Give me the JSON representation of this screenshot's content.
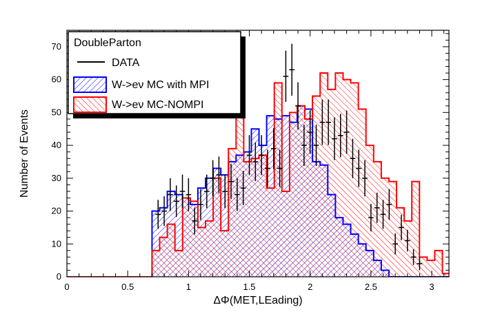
{
  "chart_data": {
    "type": "histogram",
    "xlabel": "ΔΦ(MET,LEading)",
    "ylabel": "Number of Events",
    "xlim": [
      0,
      3.14159
    ],
    "ylim": [
      0,
      75
    ],
    "bin_width": 0.0314159,
    "x_ticks": [
      0,
      0.5,
      1,
      1.5,
      2,
      2.5,
      3
    ],
    "x_tick_labels": [
      "0",
      "0.5",
      "1",
      "1.5",
      "2",
      "2.5",
      "3"
    ],
    "y_ticks": [
      0,
      10,
      20,
      30,
      40,
      50,
      60,
      70
    ],
    "y_tick_labels": [
      "0",
      "10",
      "20",
      "30",
      "40",
      "50",
      "60",
      "70"
    ],
    "legend": {
      "title": "DoubleParton",
      "position": "top-left",
      "entries": [
        {
          "label": "DATA",
          "style": "line"
        },
        {
          "label": "W->eν MC with MPI",
          "style": "hatched-blue"
        },
        {
          "label": "W->eν MC-NOMPI",
          "style": "hatched-red"
        }
      ]
    },
    "series": [
      {
        "name": "W->eν MC with MPI",
        "style": "blue-hatched",
        "color": "#0000ff",
        "bin_start": 0.7,
        "values": [
          20,
          20,
          21,
          21,
          26,
          26,
          25,
          25,
          24,
          24,
          22,
          22,
          27,
          27,
          30,
          30,
          33,
          33,
          31,
          31,
          35,
          35,
          37,
          37,
          38,
          38,
          45,
          45,
          40,
          40,
          49,
          49,
          48,
          48,
          49,
          49,
          47,
          47,
          52,
          52,
          51,
          51,
          35,
          35,
          34,
          34,
          25,
          25,
          18,
          18,
          16,
          16,
          13,
          13,
          10,
          10,
          8,
          8,
          5,
          5,
          2,
          2
        ]
      },
      {
        "name": "W->eν MC-NOMPI",
        "style": "red-hatched",
        "color": "#ff0000",
        "bin_start": 0.7,
        "values": [
          8,
          8,
          12,
          12,
          16,
          16,
          8,
          8,
          24,
          24,
          23,
          23,
          15,
          15,
          17,
          17,
          30,
          30,
          14,
          14,
          39,
          39,
          50,
          50,
          35,
          35,
          36,
          36,
          37,
          37,
          27,
          27,
          59,
          59,
          26,
          26,
          50,
          50,
          52,
          52,
          48,
          48,
          55,
          55,
          62,
          62,
          57,
          57,
          62,
          62,
          60,
          60,
          59,
          59,
          51,
          51,
          40,
          40,
          35,
          35,
          30,
          30,
          29,
          29,
          21,
          21,
          17,
          17,
          29,
          29,
          6,
          6,
          5,
          5,
          8,
          8,
          1,
          1,
          0
        ]
      },
      {
        "name": "DATA",
        "style": "points",
        "color": "#000000",
        "x": [
          0.75,
          0.8,
          0.85,
          0.9,
          0.95,
          1.0,
          1.05,
          1.1,
          1.15,
          1.2,
          1.25,
          1.3,
          1.35,
          1.4,
          1.45,
          1.5,
          1.55,
          1.6,
          1.65,
          1.7,
          1.75,
          1.8,
          1.85,
          1.9,
          1.95,
          2.0,
          2.05,
          2.1,
          2.15,
          2.2,
          2.25,
          2.3,
          2.35,
          2.4,
          2.45,
          2.5,
          2.55,
          2.6,
          2.65,
          2.7,
          2.75,
          2.8,
          2.85,
          2.9
        ],
        "y": [
          19,
          20,
          25,
          23,
          26,
          25,
          17,
          22,
          26,
          30,
          31,
          26,
          29,
          25,
          27,
          37,
          35,
          37,
          33,
          39,
          33,
          61,
          63,
          52,
          40,
          44,
          40,
          47,
          47,
          42,
          43,
          44,
          36,
          33,
          30,
          18,
          21,
          19,
          22,
          10,
          15,
          11,
          6,
          4
        ],
        "err": [
          4.4,
          4.5,
          5.0,
          4.8,
          5.1,
          5.0,
          4.1,
          4.7,
          5.1,
          5.5,
          5.6,
          5.1,
          5.4,
          5.0,
          5.2,
          6.1,
          5.9,
          6.1,
          5.7,
          6.2,
          5.7,
          7.8,
          7.9,
          7.2,
          6.3,
          6.6,
          6.3,
          6.9,
          6.9,
          6.5,
          6.6,
          6.6,
          6.0,
          5.7,
          5.5,
          4.2,
          4.6,
          4.4,
          4.7,
          3.2,
          3.9,
          3.3,
          2.4,
          2.0
        ]
      }
    ]
  }
}
